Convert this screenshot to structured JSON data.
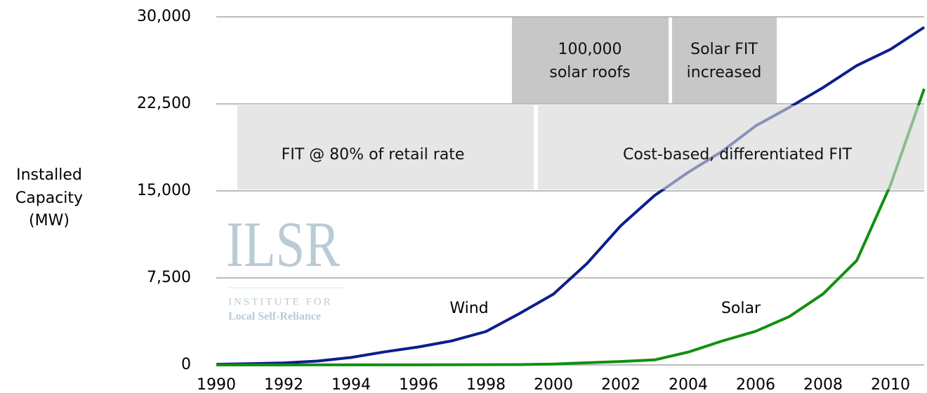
{
  "chart_data": {
    "type": "line",
    "ylabel": [
      "Installed",
      "Capacity",
      "(MW)"
    ],
    "x": [
      1990,
      1991,
      1992,
      1993,
      1994,
      1995,
      1996,
      1997,
      1998,
      1999,
      2000,
      2001,
      2002,
      2003,
      2004,
      2005,
      2006,
      2007,
      2008,
      2009,
      2010,
      2011
    ],
    "series": [
      {
        "name": "Wind",
        "color": "#0d1e8c",
        "values": [
          56,
          106,
          174,
          334,
          643,
          1130,
          1550,
          2080,
          2880,
          4440,
          6100,
          8750,
          12000,
          14600,
          16600,
          18400,
          20600,
          22200,
          23900,
          25800,
          27200,
          29100
        ]
      },
      {
        "name": "Solar",
        "color": "#119011",
        "values": [
          1,
          2,
          3,
          5,
          6,
          8,
          11,
          18,
          23,
          32,
          76,
          186,
          296,
          435,
          1105,
          2056,
          2899,
          4170,
          6120,
          9000,
          15500,
          23800
        ]
      }
    ],
    "xlim": [
      1990,
      2011
    ],
    "xticks": [
      1990,
      1992,
      1994,
      1996,
      1998,
      2000,
      2002,
      2004,
      2006,
      2008,
      2010
    ],
    "ylim": [
      0,
      30000
    ],
    "yticks": [
      0,
      {
        "value": 7500,
        "label": "7,500"
      },
      {
        "value": 15000,
        "label": "15,000"
      },
      {
        "value": 22500,
        "label": "22,500"
      },
      {
        "value": 30000,
        "label": "30,000"
      }
    ],
    "grid": true,
    "annotations": [
      [
        "FIT @ 80% of retail rate"
      ],
      [
        "Cost-based, differentiated FIT"
      ],
      [
        "100,000",
        "solar roofs"
      ],
      [
        "Solar FIT",
        "increased"
      ]
    ],
    "logo": {
      "mark": "ILSR",
      "line1": "INSTITUTE FOR",
      "line2": "Local Self-Reliance"
    }
  }
}
